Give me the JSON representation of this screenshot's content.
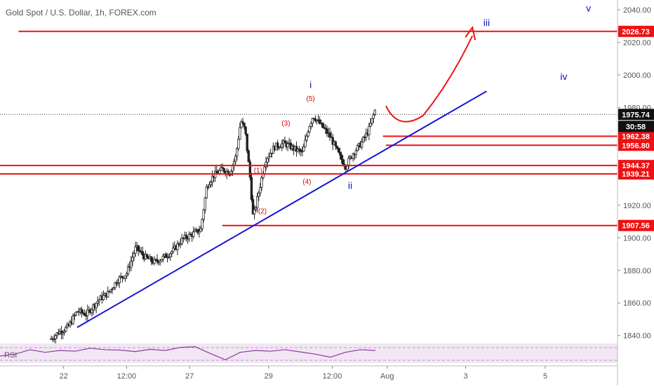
{
  "chart_data": {
    "type": "candlestick",
    "title": "Gold Spot / U.S. Dollar, 1h, FOREX.com",
    "y_ticks": [
      1840,
      1860,
      1880,
      1900,
      1920,
      1940,
      1960,
      1980,
      2000,
      2020,
      2040
    ],
    "y_tick_labels": [
      "1840.00",
      "1860.00",
      "1880.00",
      "1900.00",
      "1920.00",
      "",
      "",
      "1980.00",
      "2000.00",
      "2020.00",
      "2040.00"
    ],
    "ylim": [
      1836,
      2046
    ],
    "x_ticks": [
      {
        "label": "22",
        "pos": 0.103
      },
      {
        "label": "12:00",
        "pos": 0.205
      },
      {
        "label": "27",
        "pos": 0.307
      },
      {
        "label": "29",
        "pos": 0.435
      },
      {
        "label": "12:00",
        "pos": 0.538
      },
      {
        "label": "Aug",
        "pos": 0.627
      },
      {
        "label": "3",
        "pos": 0.754
      },
      {
        "label": "5",
        "pos": 0.883
      }
    ],
    "current_price": {
      "value": 1975.74,
      "label": "1975.74",
      "countdown": "30:58"
    },
    "levels": [
      {
        "value": 2026.73,
        "label": "2026.73",
        "start": 0.03
      },
      {
        "value": 1962.38,
        "label": "1962.38",
        "start": 0.62
      },
      {
        "value": 1956.8,
        "label": "1956.80",
        "start": 0.625
      },
      {
        "value": 1944.37,
        "label": "1944.37",
        "start": 0.0
      },
      {
        "value": 1939.21,
        "label": "1939.21",
        "start": 0.0
      },
      {
        "value": 1907.56,
        "label": "1907.56",
        "start": 0.36
      }
    ],
    "trendline": {
      "from": {
        "x": 0.125,
        "y": 1845
      },
      "to": {
        "x": 0.788,
        "y": 1990
      }
    },
    "wave_labels": [
      {
        "text": "i",
        "x": 0.503,
        "y": 1992,
        "color": "blue"
      },
      {
        "text": "(5)",
        "x": 0.503,
        "y": 1984,
        "color": "red"
      },
      {
        "text": "(3)",
        "x": 0.463,
        "y": 1969,
        "color": "red"
      },
      {
        "text": "(1)",
        "x": 0.418,
        "y": 1940,
        "color": "red"
      },
      {
        "text": "(4)",
        "x": 0.497,
        "y": 1933,
        "color": "red"
      },
      {
        "text": "(2)",
        "x": 0.425,
        "y": 1915,
        "color": "red"
      },
      {
        "text": "ii",
        "x": 0.567,
        "y": 1930,
        "color": "blue"
      },
      {
        "text": "iii",
        "x": 0.788,
        "y": 2030,
        "color": "blue"
      },
      {
        "text": "iv",
        "x": 0.913,
        "y": 1997,
        "color": "blue"
      },
      {
        "text": "v",
        "x": 0.953,
        "y": 2039,
        "color": "blue"
      }
    ],
    "projection": [
      {
        "x": 0.625,
        "y": 1981
      },
      {
        "x": 0.645,
        "y": 1973
      },
      {
        "x": 0.685,
        "y": 1975
      },
      {
        "x": 0.74,
        "y": 2004
      },
      {
        "x": 0.765,
        "y": 2024
      }
    ],
    "price_path": [
      {
        "x": 0.083,
        "y": 1838
      },
      {
        "x": 0.095,
        "y": 1842
      },
      {
        "x": 0.11,
        "y": 1845
      },
      {
        "x": 0.125,
        "y": 1855
      },
      {
        "x": 0.14,
        "y": 1853
      },
      {
        "x": 0.16,
        "y": 1862
      },
      {
        "x": 0.175,
        "y": 1866
      },
      {
        "x": 0.19,
        "y": 1874
      },
      {
        "x": 0.205,
        "y": 1878
      },
      {
        "x": 0.22,
        "y": 1894
      },
      {
        "x": 0.235,
        "y": 1888
      },
      {
        "x": 0.25,
        "y": 1885
      },
      {
        "x": 0.265,
        "y": 1888
      },
      {
        "x": 0.28,
        "y": 1892
      },
      {
        "x": 0.295,
        "y": 1899
      },
      {
        "x": 0.31,
        "y": 1902
      },
      {
        "x": 0.325,
        "y": 1905
      },
      {
        "x": 0.335,
        "y": 1932
      },
      {
        "x": 0.345,
        "y": 1938
      },
      {
        "x": 0.36,
        "y": 1942
      },
      {
        "x": 0.372,
        "y": 1940
      },
      {
        "x": 0.382,
        "y": 1950
      },
      {
        "x": 0.39,
        "y": 1972
      },
      {
        "x": 0.397,
        "y": 1966
      },
      {
        "x": 0.405,
        "y": 1937
      },
      {
        "x": 0.41,
        "y": 1912
      },
      {
        "x": 0.418,
        "y": 1926
      },
      {
        "x": 0.43,
        "y": 1948
      },
      {
        "x": 0.445,
        "y": 1956
      },
      {
        "x": 0.46,
        "y": 1958
      },
      {
        "x": 0.475,
        "y": 1955
      },
      {
        "x": 0.49,
        "y": 1952
      },
      {
        "x": 0.5,
        "y": 1968
      },
      {
        "x": 0.507,
        "y": 1975
      },
      {
        "x": 0.52,
        "y": 1969
      },
      {
        "x": 0.535,
        "y": 1962
      },
      {
        "x": 0.55,
        "y": 1950
      },
      {
        "x": 0.56,
        "y": 1944
      },
      {
        "x": 0.572,
        "y": 1952
      },
      {
        "x": 0.585,
        "y": 1958
      },
      {
        "x": 0.597,
        "y": 1966
      },
      {
        "x": 0.608,
        "y": 1979
      }
    ],
    "rsi": {
      "label": "RSI",
      "values": [
        45,
        50,
        62,
        55,
        60,
        58,
        66,
        62,
        61,
        57,
        63,
        60,
        68,
        70,
        52,
        35,
        55,
        60,
        58,
        62,
        56,
        50,
        42,
        55,
        62,
        60
      ]
    }
  }
}
